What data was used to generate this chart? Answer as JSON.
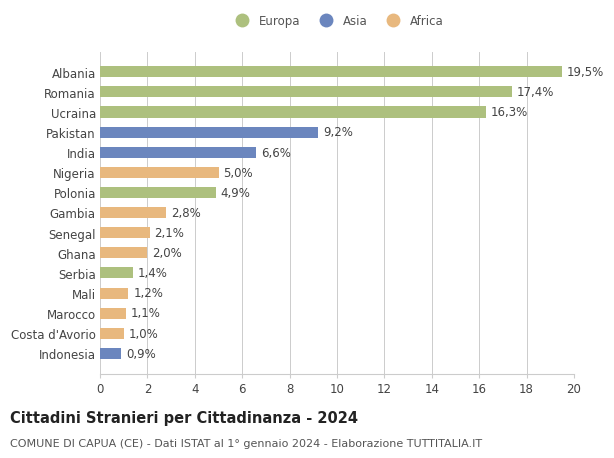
{
  "countries": [
    "Albania",
    "Romania",
    "Ucraina",
    "Pakistan",
    "India",
    "Nigeria",
    "Polonia",
    "Gambia",
    "Senegal",
    "Ghana",
    "Serbia",
    "Mali",
    "Marocco",
    "Costa d'Avorio",
    "Indonesia"
  ],
  "values": [
    19.5,
    17.4,
    16.3,
    9.2,
    6.6,
    5.0,
    4.9,
    2.8,
    2.1,
    2.0,
    1.4,
    1.2,
    1.1,
    1.0,
    0.9
  ],
  "labels": [
    "19,5%",
    "17,4%",
    "16,3%",
    "9,2%",
    "6,6%",
    "5,0%",
    "4,9%",
    "2,8%",
    "2,1%",
    "2,0%",
    "1,4%",
    "1,2%",
    "1,1%",
    "1,0%",
    "0,9%"
  ],
  "continents": [
    "Europa",
    "Europa",
    "Europa",
    "Asia",
    "Asia",
    "Africa",
    "Europa",
    "Africa",
    "Africa",
    "Africa",
    "Europa",
    "Africa",
    "Africa",
    "Africa",
    "Asia"
  ],
  "continent_colors": {
    "Europa": "#adc07e",
    "Asia": "#6b86be",
    "Africa": "#e8b87e"
  },
  "legend_labels": [
    "Europa",
    "Asia",
    "Africa"
  ],
  "title": "Cittadini Stranieri per Cittadinanza - 2024",
  "subtitle": "COMUNE DI CAPUA (CE) - Dati ISTAT al 1° gennaio 2024 - Elaborazione TUTTITALIA.IT",
  "xlim": [
    0,
    20
  ],
  "xticks": [
    0,
    2,
    4,
    6,
    8,
    10,
    12,
    14,
    16,
    18,
    20
  ],
  "background_color": "#ffffff",
  "grid_color": "#cccccc",
  "bar_height": 0.55,
  "label_fontsize": 8.5,
  "title_fontsize": 10.5,
  "subtitle_fontsize": 8.0,
  "tick_fontsize": 8.5
}
